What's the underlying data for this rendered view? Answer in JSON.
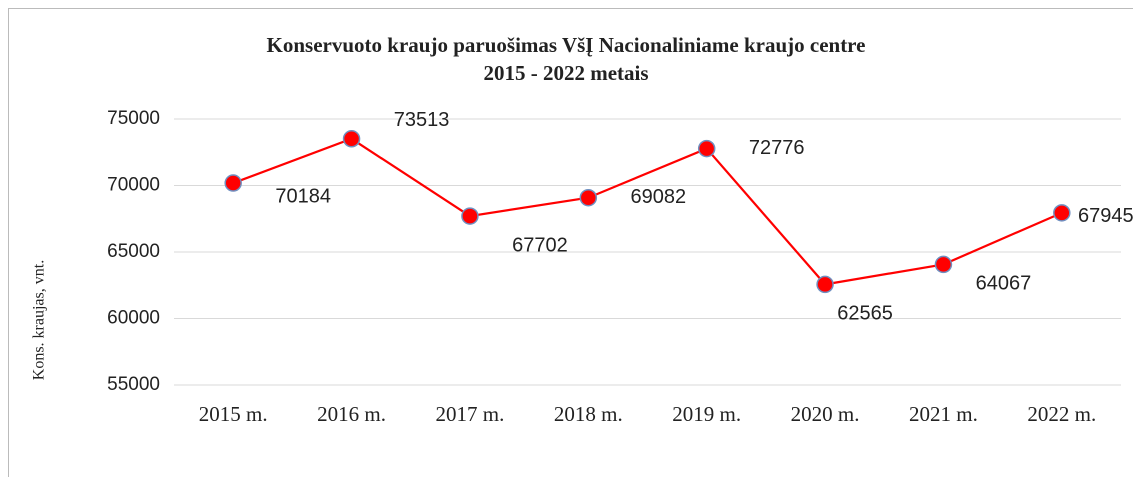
{
  "chart_data": {
    "type": "line",
    "title": [
      "Konservuoto kraujo paruošimas VšĮ Nacionaliniame kraujo centre",
      "2015 - 2022 metais"
    ],
    "ylabel": "Kons. kraujas, vnt.",
    "categories": [
      "2015 m.",
      "2016 m.",
      "2017 m.",
      "2018 m.",
      "2019 m.",
      "2020 m.",
      "2021 m.",
      "2022 m."
    ],
    "series": [
      {
        "name": "Kons. kraujas",
        "color": "#ff0000",
        "marker_color": "#ff0000",
        "marker_edge": "#6f8fc0",
        "values": [
          70184,
          73513,
          67702,
          69082,
          72776,
          62565,
          64067,
          67945
        ]
      }
    ],
    "ylim": [
      55000,
      75000
    ],
    "yticks": [
      55000,
      60000,
      65000,
      70000,
      75000
    ],
    "grid": true
  }
}
